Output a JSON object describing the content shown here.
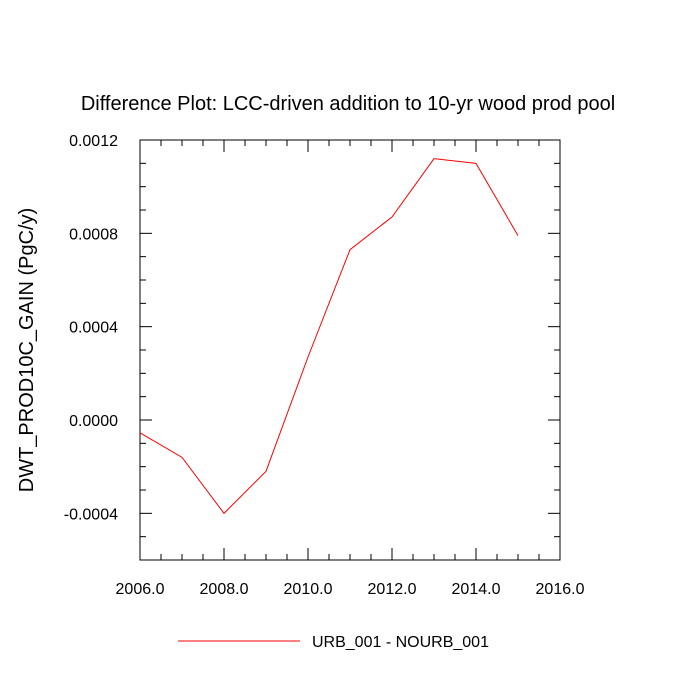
{
  "chart_data": {
    "type": "line",
    "title": "Difference Plot: LCC-driven addition to 10-yr wood prod pool",
    "xlabel": "",
    "ylabel": "DWT_PROD10C_GAIN  (PgC/y)",
    "xlim": [
      2006.0,
      2016.0
    ],
    "ylim": [
      -0.0006,
      0.0012
    ],
    "xticks": [
      "2006.0",
      "2008.0",
      "2010.0",
      "2012.0",
      "2014.0",
      "2016.0"
    ],
    "xtick_values": [
      2006,
      2008,
      2010,
      2012,
      2014,
      2016
    ],
    "yticks": [
      "-0.0004",
      "0.0000",
      "0.0004",
      "0.0008",
      "0.0012"
    ],
    "ytick_values": [
      -0.0004,
      0.0,
      0.0004,
      0.0008,
      0.0012
    ],
    "grid": false,
    "legend_position": "bottom-center",
    "series": [
      {
        "name": "URB_001 - NOURB_001",
        "color": "#ff0000",
        "x": [
          2006,
          2007,
          2008,
          2009,
          2010,
          2011,
          2012,
          2013,
          2014,
          2015
        ],
        "y": [
          -5.5e-05,
          -0.00016,
          -0.0004,
          -0.00022,
          0.00027,
          0.00073,
          0.00087,
          0.00112,
          0.0011,
          0.00079
        ]
      }
    ]
  }
}
